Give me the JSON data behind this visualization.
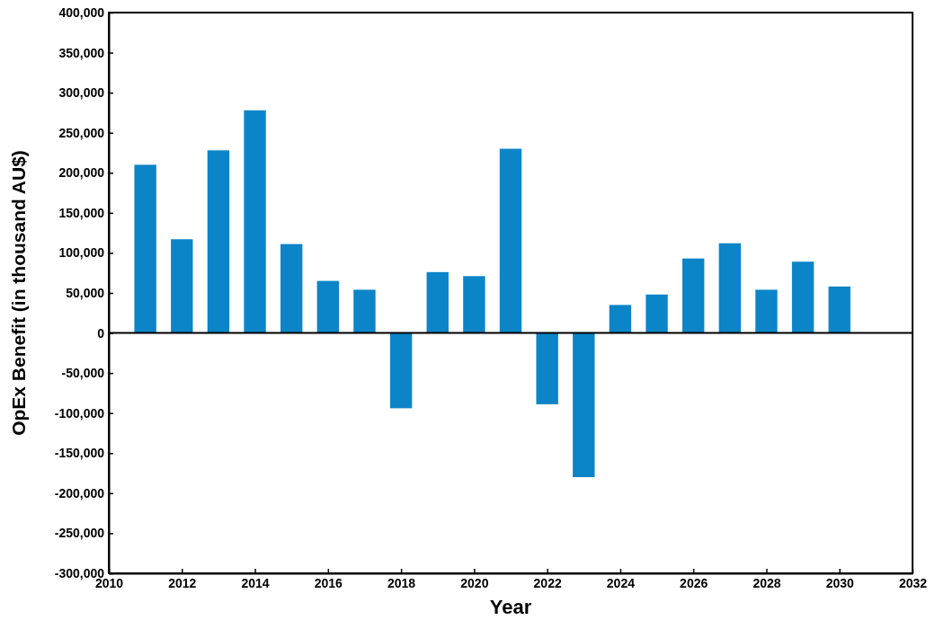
{
  "chart_data": {
    "type": "bar",
    "xlabel": "Year",
    "ylabel": "OpEx Benefit (in thousand AU$)",
    "x": [
      2011,
      2012,
      2013,
      2014,
      2015,
      2016,
      2017,
      2018,
      2019,
      2020,
      2021,
      2022,
      2023,
      2024,
      2025,
      2026,
      2027,
      2028,
      2029,
      2030
    ],
    "values": [
      210000,
      117000,
      228000,
      278000,
      111000,
      65000,
      54000,
      -94000,
      76000,
      71000,
      230000,
      -89000,
      -180000,
      35000,
      48000,
      93000,
      112000,
      54000,
      89000,
      58000
    ],
    "color": "#0c84c8",
    "xlim": [
      2010,
      2032
    ],
    "xticks": [
      2010,
      2012,
      2014,
      2016,
      2018,
      2020,
      2022,
      2024,
      2026,
      2028,
      2030,
      2032
    ],
    "ylim": [
      -300000,
      400000
    ],
    "yticks": [
      {
        "value": -300000,
        "label": "-300,000"
      },
      {
        "value": -250000,
        "label": "-250,000"
      },
      {
        "value": -200000,
        "label": "-200,000"
      },
      {
        "value": -150000,
        "label": "-150,000"
      },
      {
        "value": -100000,
        "label": "-100,000"
      },
      {
        "value": -50000,
        "label": "-50,000"
      },
      0,
      {
        "value": 50000,
        "label": "50,000"
      },
      {
        "value": 100000,
        "label": "100,000"
      },
      {
        "value": 150000,
        "label": "150,000"
      },
      {
        "value": 200000,
        "label": "200,000"
      },
      {
        "value": 250000,
        "label": "250,000"
      },
      {
        "value": 300000,
        "label": "300,000"
      },
      {
        "value": 350000,
        "label": "350,000"
      },
      {
        "value": 400000,
        "label": "400,000"
      }
    ],
    "ref_lines": [
      {
        "axis": "y",
        "value": 0,
        "color": "#000000"
      }
    ],
    "grid": false
  }
}
